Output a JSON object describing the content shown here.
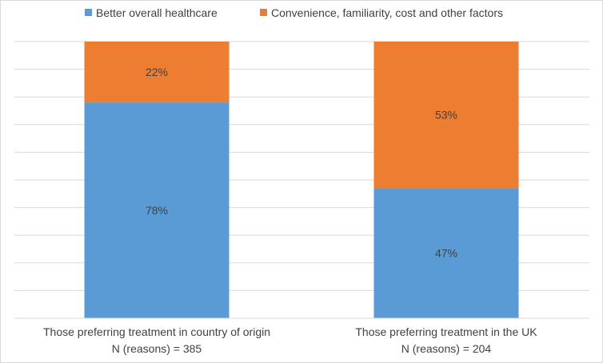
{
  "chart_data": {
    "type": "bar",
    "stacked": true,
    "percent_stacked": true,
    "categories": [
      [
        "Those preferring treatment in country of origin",
        "N (reasons) = 385"
      ],
      [
        "Those preferring treatment in the UK",
        "N (reasons) = 204"
      ]
    ],
    "series": [
      {
        "name": "Better overall healthcare",
        "values": [
          78,
          47
        ],
        "labels": [
          "78%",
          "47%"
        ],
        "color": "#5b9bd5"
      },
      {
        "name": "Convenience, familiarity, cost and other factors",
        "values": [
          22,
          53
        ],
        "labels": [
          "22%",
          "53%"
        ],
        "color": "#ed7d31"
      }
    ],
    "ylim": [
      0,
      100
    ],
    "gridlines": true,
    "gridline_count": 10,
    "legend_position": "top",
    "title": "",
    "xlabel": "",
    "ylabel": ""
  }
}
